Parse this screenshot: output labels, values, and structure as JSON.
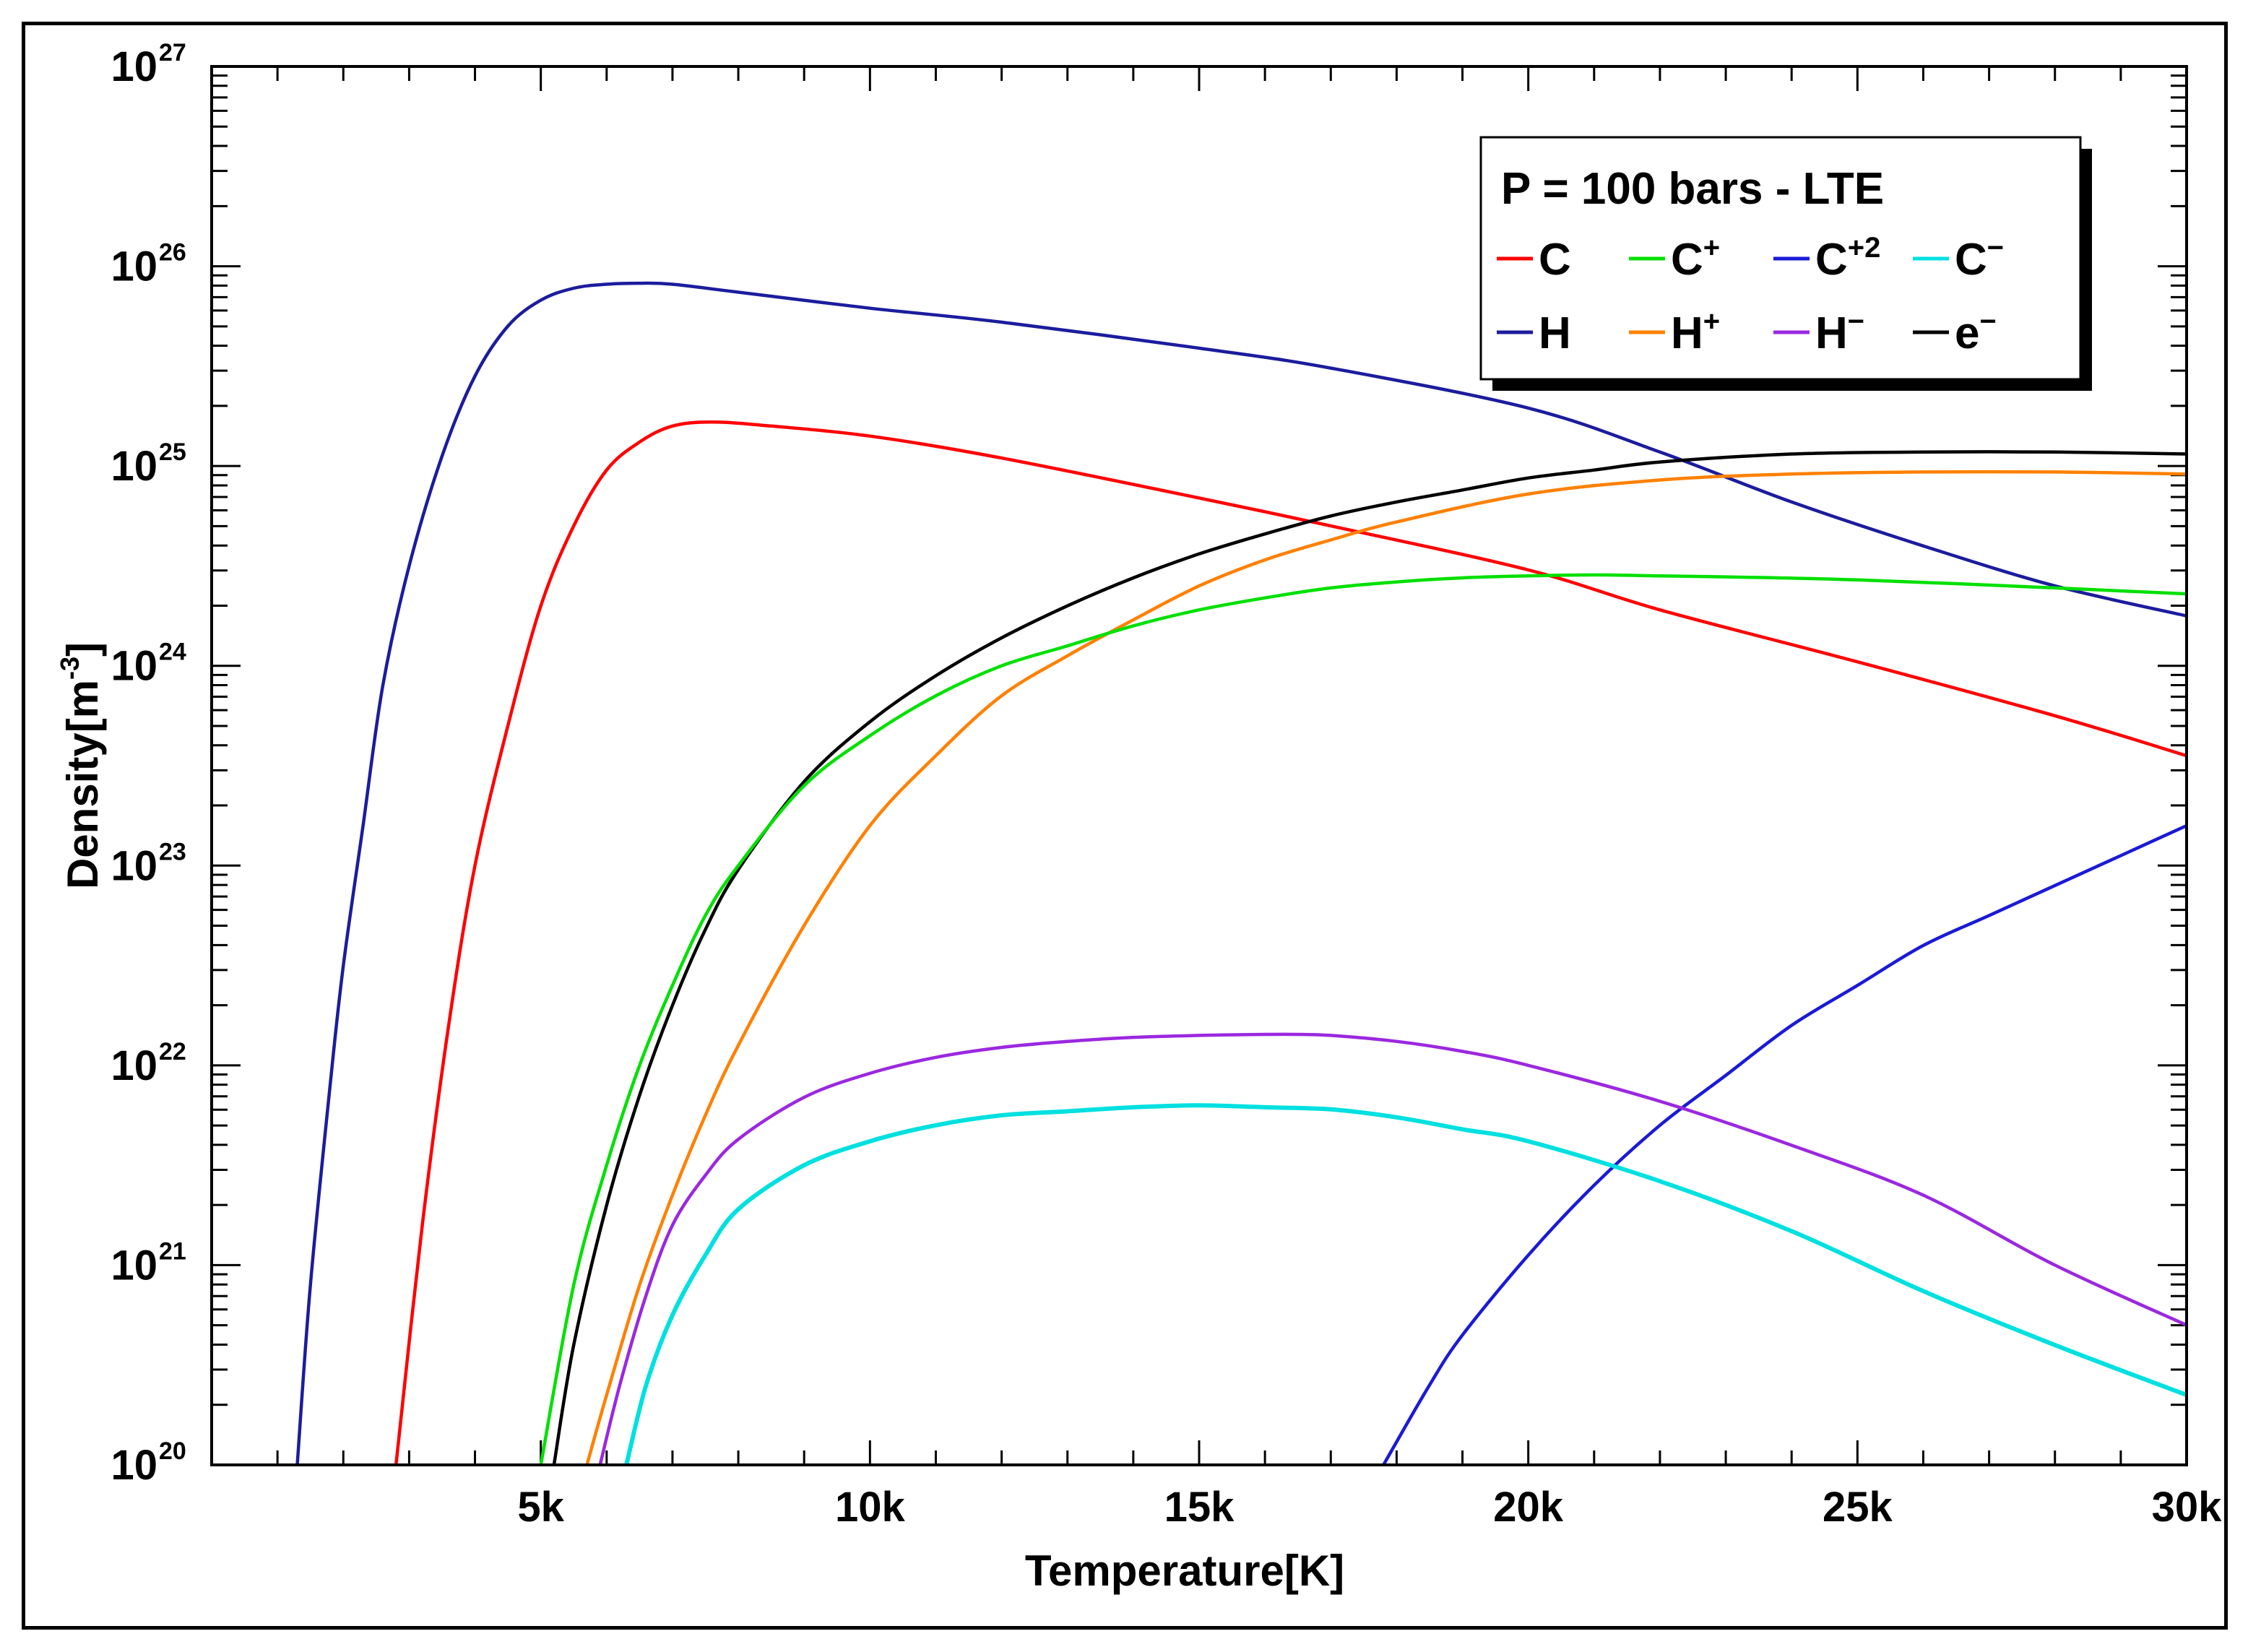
{
  "chart_data": {
    "type": "line",
    "title": "",
    "xlabel": "Temperature[K]",
    "ylabel": "Density[m^-3]",
    "ylabel_parts": {
      "base": "Density[m",
      "exp": "-3",
      "end": "]"
    },
    "xlim": [
      0,
      30000
    ],
    "ylim_log10": [
      20,
      27
    ],
    "yscale": "log",
    "x_ticks": [
      {
        "value": 5000,
        "label": "5k"
      },
      {
        "value": 10000,
        "label": "10k"
      },
      {
        "value": 15000,
        "label": "15k"
      },
      {
        "value": 20000,
        "label": "20k"
      },
      {
        "value": 25000,
        "label": "25k"
      },
      {
        "value": 30000,
        "label": "30k"
      }
    ],
    "y_ticks": [
      {
        "exp": 20,
        "base": "10",
        "sup": "20"
      },
      {
        "exp": 21,
        "base": "10",
        "sup": "21"
      },
      {
        "exp": 22,
        "base": "10",
        "sup": "22"
      },
      {
        "exp": 23,
        "base": "10",
        "sup": "23"
      },
      {
        "exp": 24,
        "base": "10",
        "sup": "24"
      },
      {
        "exp": 25,
        "base": "10",
        "sup": "25"
      },
      {
        "exp": 26,
        "base": "10",
        "sup": "26"
      },
      {
        "exp": 27,
        "base": "10",
        "sup": "27"
      }
    ],
    "legend": {
      "title": "P = 100 bars - LTE",
      "position": "top-right"
    },
    "series": [
      {
        "name": "C",
        "label_base": "C",
        "label_sup": "",
        "color": "#ff0000",
        "x": [
          2800,
          3200,
          3600,
          4000,
          4500,
          5000,
          5500,
          6000,
          6500,
          7000,
          7600,
          8500,
          10000,
          12000,
          15000,
          17000,
          20000,
          22000,
          25000,
          28000,
          30000
        ],
        "log_y": [
          20.0,
          21.2,
          22.2,
          23.0,
          23.7,
          24.3,
          24.7,
          24.98,
          25.12,
          25.2,
          25.22,
          25.2,
          25.15,
          25.04,
          24.84,
          24.7,
          24.48,
          24.28,
          24.02,
          23.75,
          23.55
        ]
      },
      {
        "name": "C+",
        "label_base": "C",
        "label_sup": "+",
        "color": "#00e000",
        "x": [
          5000,
          5500,
          6000,
          6500,
          7000,
          7500,
          8000,
          9000,
          10000,
          11000,
          12000,
          13000,
          14000,
          15000,
          16000,
          17000,
          18000,
          19000,
          20000,
          21000,
          22000,
          23000,
          25000,
          28000,
          30000
        ],
        "log_y": [
          20.0,
          20.9,
          21.5,
          22.0,
          22.4,
          22.75,
          23.0,
          23.4,
          23.65,
          23.85,
          24.0,
          24.1,
          24.2,
          24.28,
          24.34,
          24.39,
          24.42,
          24.44,
          24.45,
          24.455,
          24.45,
          24.445,
          24.43,
          24.39,
          24.36
        ]
      },
      {
        "name": "C+2",
        "label_base": "C",
        "label_sup": "+2",
        "color": "#1a1ad8",
        "x": [
          17800,
          18500,
          19000,
          20000,
          21000,
          22000,
          23000,
          24000,
          25000,
          26000,
          27000,
          28000,
          29000,
          30000
        ],
        "log_y": [
          20.0,
          20.4,
          20.65,
          21.05,
          21.4,
          21.7,
          21.95,
          22.2,
          22.4,
          22.6,
          22.75,
          22.9,
          23.05,
          23.2
        ]
      },
      {
        "name": "C-",
        "label_base": "C",
        "label_sup": "−",
        "color": "#00e0e0",
        "x": [
          6300,
          6600,
          7000,
          7500,
          8000,
          9000,
          10000,
          11000,
          12000,
          13000,
          14000,
          15000,
          16000,
          17000,
          18000,
          19000,
          20000,
          22000,
          24000,
          26000,
          28000,
          30000
        ],
        "log_y": [
          20.0,
          20.4,
          20.75,
          21.05,
          21.28,
          21.5,
          21.62,
          21.7,
          21.75,
          21.77,
          21.79,
          21.8,
          21.79,
          21.78,
          21.74,
          21.68,
          21.62,
          21.42,
          21.17,
          20.87,
          20.6,
          20.35
        ]
      },
      {
        "name": "H",
        "label_base": "H",
        "label_sup": "",
        "color": "#1c1c9e",
        "x": [
          1300,
          1500,
          1800,
          2000,
          2300,
          2600,
          3000,
          3500,
          4000,
          4500,
          5000,
          5500,
          6000,
          6500,
          7000,
          8000,
          10000,
          12000,
          15000,
          17000,
          20000,
          22000,
          24000,
          26000,
          28000,
          30000
        ],
        "log_y": [
          20.0,
          20.9,
          21.9,
          22.5,
          23.2,
          23.9,
          24.5,
          25.05,
          25.45,
          25.7,
          25.83,
          25.89,
          25.91,
          25.915,
          25.91,
          25.87,
          25.79,
          25.72,
          25.59,
          25.49,
          25.29,
          25.07,
          24.82,
          24.6,
          24.4,
          24.25
        ]
      },
      {
        "name": "H+",
        "label_base": "H",
        "label_sup": "+",
        "color": "#ff8000",
        "x": [
          5700,
          6000,
          6500,
          7000,
          7500,
          8000,
          9000,
          10000,
          11000,
          12000,
          13000,
          14000,
          15000,
          16000,
          17000,
          18000,
          20000,
          22000,
          24000,
          26000,
          28000,
          30000
        ],
        "log_y": [
          20.0,
          20.35,
          20.9,
          21.35,
          21.75,
          22.1,
          22.7,
          23.2,
          23.55,
          23.85,
          24.05,
          24.23,
          24.4,
          24.53,
          24.63,
          24.72,
          24.86,
          24.93,
          24.96,
          24.97,
          24.97,
          24.96
        ]
      },
      {
        "name": "H-",
        "label_base": "H",
        "label_sup": "−",
        "color": "#9b28e0",
        "x": [
          5900,
          6200,
          6600,
          7000,
          7500,
          8000,
          9000,
          10000,
          11000,
          12000,
          13000,
          14000,
          15000,
          16000,
          16500,
          17000,
          18000,
          19000,
          20000,
          22000,
          24000,
          26000,
          28000,
          30000
        ],
        "log_y": [
          20.0,
          20.4,
          20.85,
          21.2,
          21.45,
          21.63,
          21.84,
          21.96,
          22.04,
          22.09,
          22.12,
          22.14,
          22.15,
          22.155,
          22.155,
          22.15,
          22.12,
          22.07,
          22.0,
          21.82,
          21.6,
          21.35,
          21.0,
          20.7
        ]
      },
      {
        "name": "e-",
        "label_base": "e",
        "label_sup": "−",
        "color": "#000000",
        "x": [
          5200,
          5500,
          6000,
          6500,
          7000,
          7500,
          8000,
          9000,
          10000,
          11000,
          12000,
          13000,
          14000,
          15000,
          16000,
          17000,
          18000,
          19000,
          20000,
          21000,
          22000,
          24000,
          26000,
          28000,
          30000
        ],
        "log_y": [
          20.0,
          20.6,
          21.3,
          21.85,
          22.3,
          22.68,
          22.98,
          23.42,
          23.72,
          23.95,
          24.14,
          24.3,
          24.44,
          24.56,
          24.66,
          24.75,
          24.82,
          24.88,
          24.94,
          24.98,
          25.02,
          25.06,
          25.07,
          25.07,
          25.06
        ]
      }
    ]
  }
}
